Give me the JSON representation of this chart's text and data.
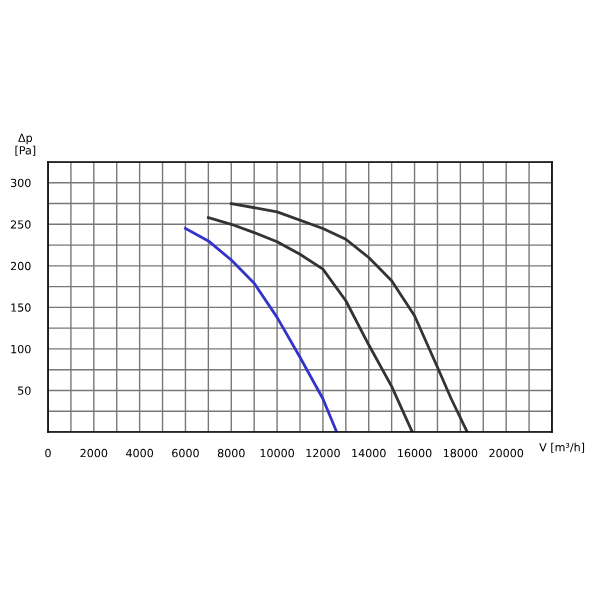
{
  "chart_data": {
    "type": "line",
    "xlabel": "V [m³/h]",
    "ylabel": "Δp\n[Pa]",
    "series": [
      {
        "color": "#3333cc",
        "x": [
          6000,
          7000,
          8000,
          9000,
          10000,
          11000,
          12000,
          12600
        ],
        "values": [
          245,
          230,
          207,
          179,
          138,
          90,
          40,
          0
        ]
      },
      {
        "color": "#333333",
        "x": [
          7000,
          8000,
          9000,
          10000,
          11000,
          12000,
          13000,
          14000,
          15000,
          15900
        ],
        "values": [
          258,
          250,
          240,
          229,
          214,
          196,
          158,
          105,
          55,
          0
        ]
      },
      {
        "color": "#333333",
        "x": [
          8000,
          10000,
          12000,
          13000,
          14000,
          15000,
          16000,
          17000,
          17600,
          18300
        ],
        "values": [
          275,
          265,
          245,
          232,
          210,
          182,
          140,
          78,
          40,
          0
        ]
      }
    ],
    "xlim": [
      0,
      22000
    ],
    "ylim": [
      0,
      325
    ],
    "xticks": [
      0,
      {
        "value": 1000,
        "label": null
      },
      2000,
      {
        "value": 3000,
        "label": null
      },
      4000,
      {
        "value": 5000,
        "label": null
      },
      6000,
      {
        "value": 7000,
        "label": null
      },
      8000,
      {
        "value": 9000,
        "label": null
      },
      10000,
      {
        "value": 11000,
        "label": null
      },
      12000,
      {
        "value": 13000,
        "label": null
      },
      14000,
      {
        "value": 15000,
        "label": null
      },
      16000,
      {
        "value": 17000,
        "label": null
      },
      18000,
      {
        "value": 19000,
        "label": null
      },
      20000,
      {
        "value": 21000,
        "label": null
      },
      {
        "value": 22000,
        "label": null
      }
    ],
    "yticks": [
      {
        "value": 0,
        "label": null
      },
      {
        "value": 25,
        "label": null
      },
      50,
      {
        "value": 75,
        "label": null
      },
      100,
      {
        "value": 125,
        "label": null
      },
      150,
      {
        "value": 175,
        "label": null
      },
      200,
      {
        "value": 225,
        "label": null
      },
      250,
      {
        "value": 275,
        "label": null
      },
      300,
      {
        "value": 325,
        "label": null
      }
    ],
    "grid": true,
    "marker": "none",
    "line_style": "solid",
    "legend": false
  }
}
